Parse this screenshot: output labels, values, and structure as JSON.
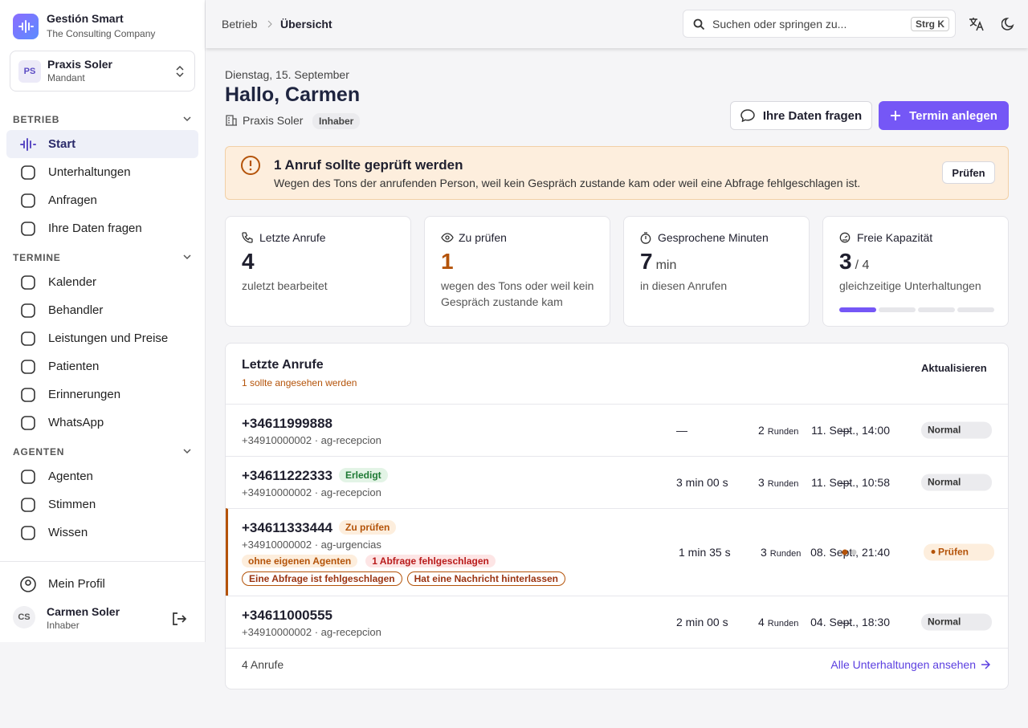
{
  "sidebar": {
    "brand": {
      "name": "Gestión Smart",
      "tagline": "The Consulting Company"
    },
    "tenant": {
      "initials": "PS",
      "name": "Praxis Soler",
      "role": "Mandant"
    },
    "sections": [
      {
        "title": "BETRIEB",
        "items": [
          "Start",
          "Unterhaltungen",
          "Anfragen",
          "Ihre Daten fragen"
        ]
      },
      {
        "title": "TERMINE",
        "items": [
          "Kalender",
          "Behandler",
          "Leistungen und Preise",
          "Patienten",
          "Erinnerungen",
          "WhatsApp"
        ]
      },
      {
        "title": "AGENTEN",
        "items": [
          "Agenten",
          "Stimmen",
          "Wissen"
        ]
      }
    ],
    "profile_link": "Mein Profil",
    "user": {
      "initials": "CS",
      "name": "Carmen Soler",
      "role": "Inhaber"
    }
  },
  "topbar": {
    "breadcrumb": [
      "Betrieb",
      "Übersicht"
    ],
    "search_placeholder": "Suchen oder springen zu...",
    "shortcut": "Strg K"
  },
  "header": {
    "date": "Dienstag, 15. September",
    "greeting": "Hallo, Carmen",
    "practice": "Praxis Soler",
    "role_badge": "Inhaber",
    "buttons": [
      "Ihre Daten fragen",
      "Termin anlegen"
    ]
  },
  "alert": {
    "title": "1 Anruf sollte geprüft werden",
    "text": "Wegen des Tons der anrufenden Person, weil kein Gespräch zustande kam oder weil eine Abfrage fehlgeschlagen ist.",
    "button": "Prüfen"
  },
  "stats": [
    {
      "label": "Letzte Anrufe",
      "value": 4,
      "caption": "zuletzt bearbeitet"
    },
    {
      "label": "Zu prüfen",
      "value": 1,
      "caption": "wegen des Tons oder weil kein Gespräch zustande kam"
    },
    {
      "label": "Gesprochene Minuten",
      "value": 7,
      "unit": "min",
      "caption": "in diesen Anrufen"
    },
    {
      "label": "Freie Kapazität",
      "value": 3,
      "unit": "/ 4",
      "caption": "gleichzeitige Unterhaltungen"
    }
  ],
  "calls": {
    "title": "Letzte Anrufe",
    "subtitle": "1 sollte angesehen werden",
    "refresh": "Aktualisieren",
    "rounds_unit": "Runden",
    "rows": [
      {
        "caller": "+34611999888",
        "line": "+34910000002 · ag-recepcion",
        "date": "11. Sept., 14:00",
        "duration": "—",
        "rounds": 2,
        "sentiment": "—",
        "status": "Normal"
      },
      {
        "caller": "+34611222333",
        "badge": "Erledigt",
        "line": "+34910000002 · ag-recepcion",
        "date": "11. Sept., 10:58",
        "duration": "3 min 00 s",
        "rounds": 3,
        "sentiment": "—",
        "status": "Normal"
      },
      {
        "caller": "+34611333444",
        "badge": "Zu prüfen",
        "line": "+34910000002 · ag-urgencias",
        "tags": [
          "ohne eigenen Agenten",
          "1 Abfrage fehlgeschlagen"
        ],
        "flags": [
          "Eine Abfrage ist fehlgeschlagen",
          "Hat eine Nachricht hinterlassen"
        ],
        "date": "08. Sept., 21:40",
        "duration": "1 min 35 s",
        "rounds": 3,
        "status": "Prüfen"
      },
      {
        "caller": "+34611000555",
        "line": "+34910000002 · ag-recepcion",
        "date": "04. Sept., 18:30",
        "duration": "2 min 00 s",
        "rounds": 4,
        "sentiment": "—",
        "status": "Normal"
      }
    ],
    "footer_count": "4 Anrufe",
    "footer_link": "Alle Unterhaltungen ansehen"
  }
}
